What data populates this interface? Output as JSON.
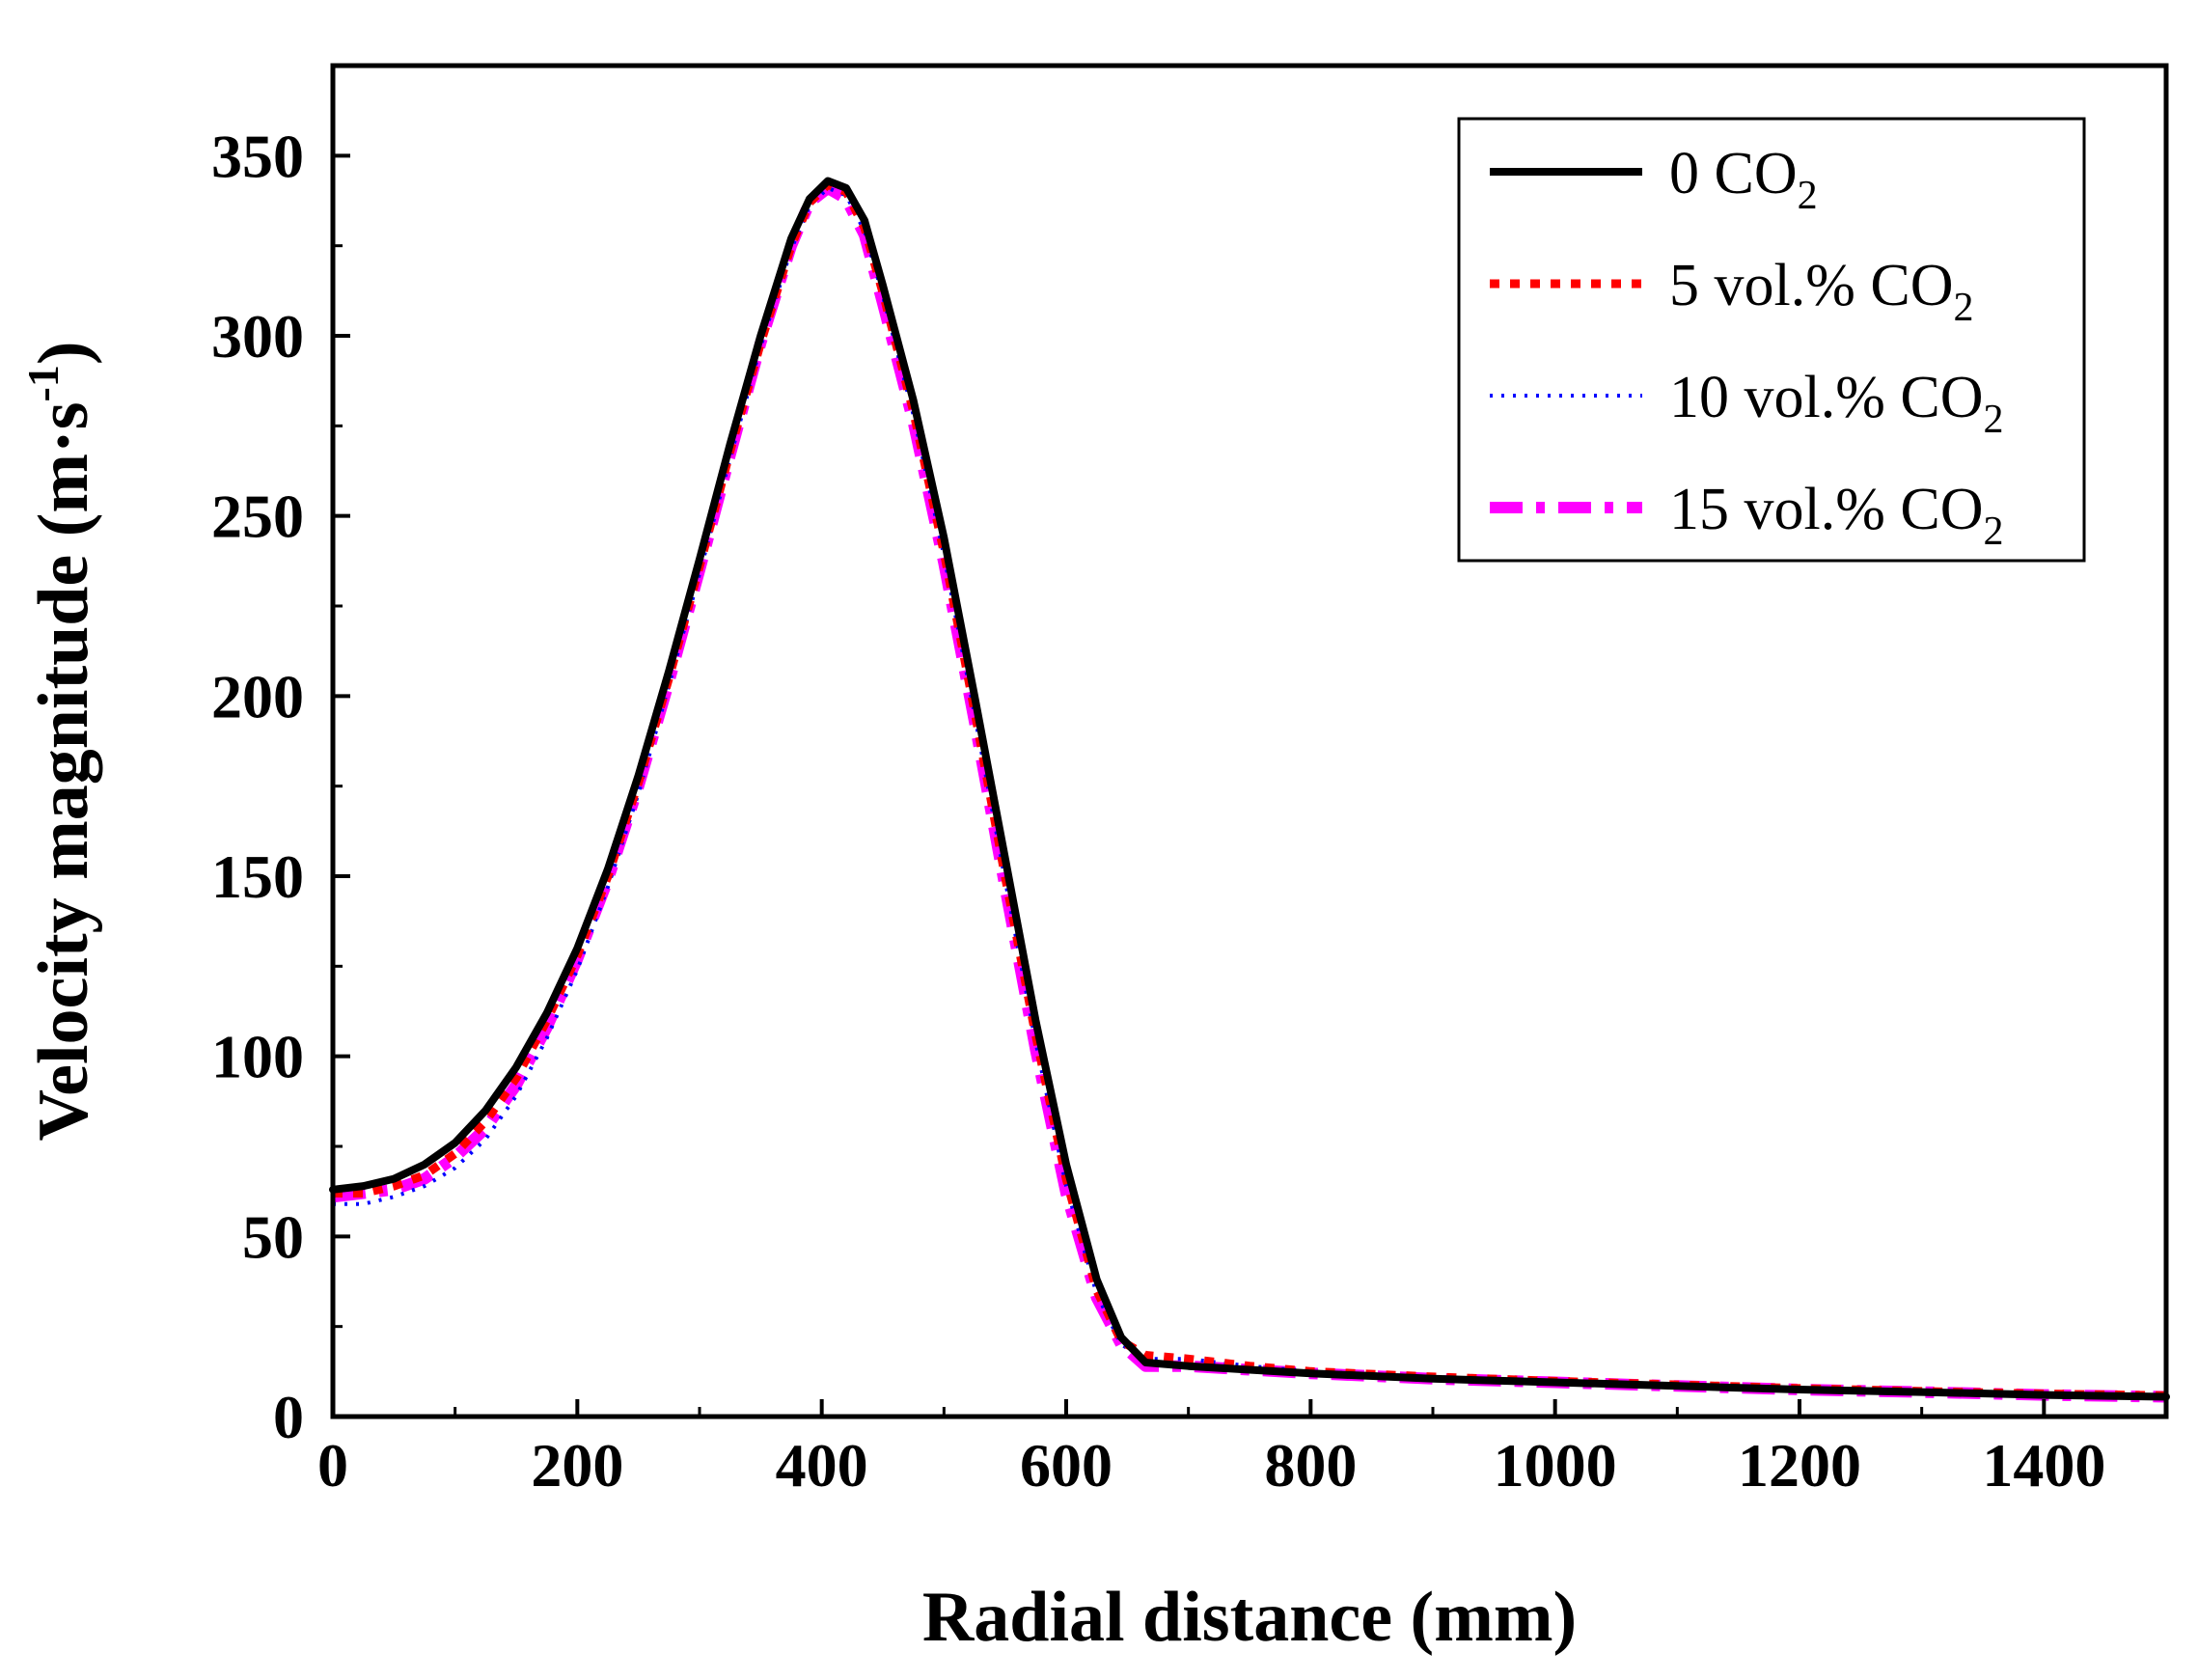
{
  "chart_data": {
    "type": "line",
    "title": "",
    "xlabel": "Radial distance (mm)",
    "ylabel": {
      "text": "Velocity magnitude (m·s",
      "superscript": "-1",
      "close": ")"
    },
    "xlim": [
      0,
      1500
    ],
    "ylim": [
      0,
      375
    ],
    "xticks": [
      0,
      200,
      400,
      600,
      800,
      1000,
      1200,
      1400
    ],
    "yticks": [
      0,
      50,
      100,
      150,
      200,
      250,
      300,
      350
    ],
    "grid": false,
    "legend_position": "top-right",
    "series": [
      {
        "name": "0 CO2",
        "label": {
          "main": "0 CO",
          "sub": "2"
        },
        "color": "#000000",
        "style": "solid",
        "x": [
          0,
          25,
          50,
          75,
          100,
          125,
          150,
          175,
          200,
          225,
          250,
          275,
          300,
          325,
          350,
          375,
          390,
          405,
          420,
          435,
          450,
          475,
          500,
          525,
          550,
          575,
          600,
          625,
          645,
          665,
          700,
          750,
          800,
          900,
          1000,
          1100,
          1200,
          1300,
          1400,
          1500
        ],
        "y": [
          63,
          64,
          66,
          70,
          76,
          85,
          97,
          112,
          130,
          152,
          178,
          207,
          238,
          270,
          300,
          327,
          338,
          343,
          341,
          332,
          314,
          282,
          244,
          200,
          155,
          110,
          70,
          38,
          22,
          15,
          14,
          13,
          12,
          10.5,
          9.5,
          8.5,
          7.5,
          6.8,
          6,
          5.5
        ]
      },
      {
        "name": "5 vol.% CO2",
        "label": {
          "main": "5 vol.% CO",
          "sub": "2"
        },
        "color": "#ff0000",
        "style": "dot",
        "x": [
          0,
          25,
          50,
          75,
          100,
          125,
          150,
          175,
          200,
          225,
          250,
          275,
          300,
          325,
          350,
          375,
          390,
          405,
          420,
          435,
          450,
          475,
          500,
          525,
          550,
          575,
          600,
          625,
          645,
          665,
          700,
          750,
          800,
          900,
          1000,
          1100,
          1200,
          1300,
          1400,
          1500
        ],
        "y": [
          62,
          62,
          64,
          67,
          73,
          82,
          94,
          110,
          128,
          150,
          176,
          205,
          236,
          268,
          298,
          325,
          337,
          342,
          340,
          330,
          312,
          279,
          240,
          196,
          150,
          106,
          66,
          35,
          21,
          17,
          16,
          14,
          12.5,
          11,
          9.8,
          8.8,
          7.8,
          7,
          6.3,
          5.8
        ]
      },
      {
        "name": "10 vol.% CO2",
        "label": {
          "main": "10 vol.% CO",
          "sub": "2"
        },
        "color": "#0000ff",
        "style": "short-dot",
        "x": [
          0,
          25,
          50,
          75,
          100,
          125,
          150,
          175,
          200,
          225,
          250,
          275,
          300,
          325,
          350,
          375,
          390,
          405,
          420,
          435,
          450,
          475,
          500,
          525,
          550,
          575,
          600,
          625,
          645,
          665,
          700,
          750,
          800,
          900,
          1000,
          1100,
          1200,
          1300,
          1400,
          1500
        ],
        "y": [
          59,
          59,
          61,
          64,
          69,
          77,
          89,
          105,
          124,
          147,
          173,
          203,
          234,
          266,
          297,
          324,
          336,
          341,
          339,
          329,
          311,
          278,
          239,
          195,
          149,
          104,
          64,
          34,
          20,
          16,
          16,
          14,
          12.5,
          11,
          9.8,
          8.8,
          7.8,
          7,
          6.3,
          5.8
        ]
      },
      {
        "name": "15 vol.% CO2",
        "label": {
          "main": "15 vol.% CO",
          "sub": "2"
        },
        "color": "#ff00ff",
        "style": "dash-dot",
        "x": [
          0,
          25,
          50,
          75,
          100,
          125,
          150,
          175,
          200,
          225,
          250,
          275,
          300,
          325,
          350,
          375,
          390,
          405,
          420,
          435,
          450,
          475,
          500,
          525,
          550,
          575,
          600,
          625,
          645,
          665,
          700,
          750,
          800,
          900,
          1000,
          1100,
          1200,
          1300,
          1400,
          1500
        ],
        "y": [
          61,
          62,
          63,
          66,
          72,
          80,
          92,
          108,
          127,
          149,
          175,
          204,
          235,
          267,
          298,
          325,
          337,
          341,
          338,
          328,
          309,
          276,
          237,
          193,
          147,
          102,
          62,
          33,
          20,
          14,
          14,
          13,
          12,
          10.5,
          9.5,
          8.5,
          7.5,
          6.8,
          6,
          5.5
        ]
      }
    ]
  }
}
